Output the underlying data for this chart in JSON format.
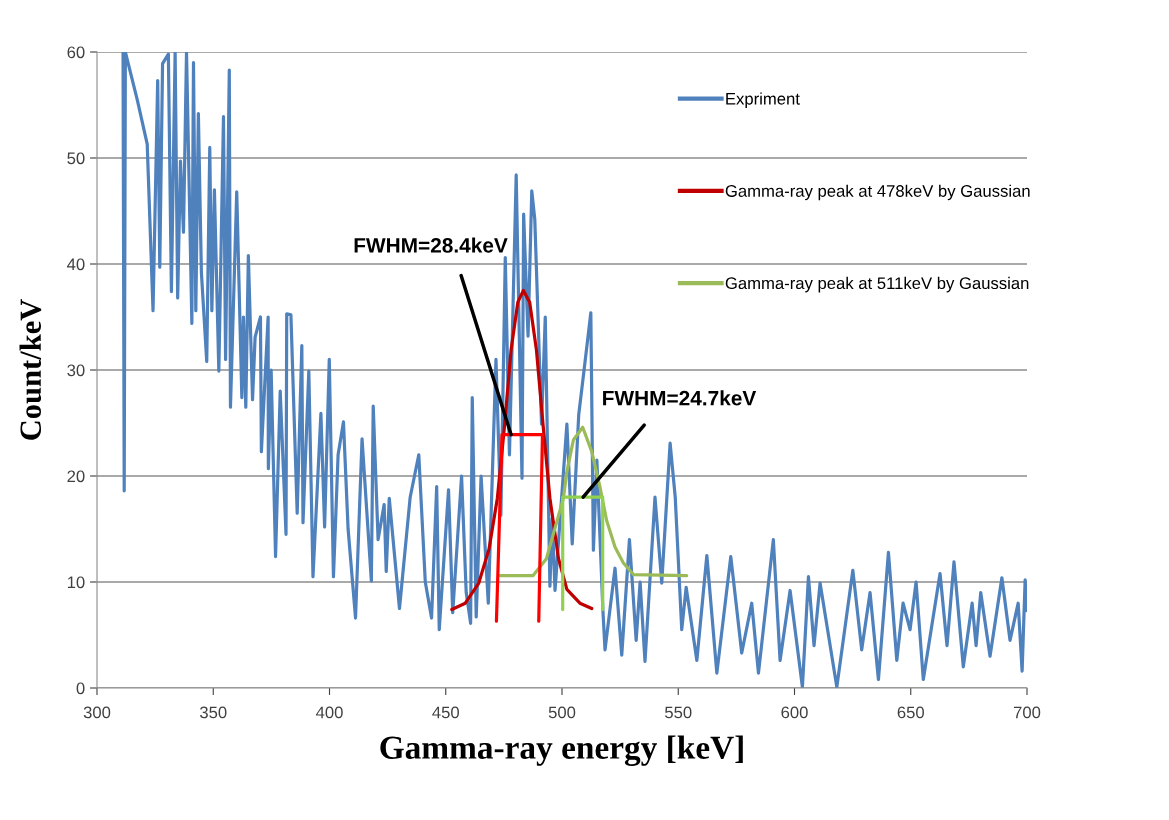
{
  "chart_data": {
    "type": "line",
    "xlabel": "Gamma-ray energy [keV]",
    "ylabel": "Count/keV",
    "xlim": [
      300,
      700
    ],
    "xticks": [
      300,
      350,
      400,
      450,
      500,
      550,
      600,
      650,
      700
    ],
    "ylim": [
      0,
      60
    ],
    "yticks": [
      0,
      10,
      20,
      30,
      40,
      50,
      60
    ],
    "grid": "y",
    "legend": "top right",
    "marker": "none",
    "line_style": "solid",
    "series": [
      {
        "name": "Expriment",
        "color": "#4f81bd",
        "x": [
          311.2,
          311.7,
          312.2,
          317.3,
          321.6,
          324.1,
          326.1,
          327.0,
          328.2,
          330.7,
          332.0,
          333.6,
          334.7,
          335.9,
          337.2,
          338.5,
          340.8,
          341.5,
          342.5,
          343.6,
          344.9,
          347.2,
          348.5,
          349.4,
          350.5,
          352.4,
          354.4,
          355.3,
          356.9,
          357.4,
          360.1,
          362.3,
          363.0,
          364.0,
          365.1,
          366.9,
          368.0,
          370.3,
          370.7,
          373.6,
          373.7,
          374.9,
          376.8,
          378.8,
          381.3,
          381.6,
          383.4,
          386.1,
          388.1,
          388.6,
          391.1,
          392.9,
          396.3,
          397.9,
          399.9,
          401.7,
          403.7,
          406.0,
          408.0,
          411.2,
          414.0,
          418.0,
          418.8,
          420.9,
          423.5,
          424.4,
          425.7,
          430.1,
          434.7,
          438.4,
          441.2,
          443.9,
          446.1,
          447.2,
          451.2,
          453.0,
          456.8,
          458.8,
          460.7,
          461.4,
          463.1,
          465.2,
          468.3,
          471.6,
          473.7,
          475.6,
          477.4,
          480.3,
          482.8,
          483.5,
          485.4,
          487.0,
          488.3,
          491.2,
          492.8,
          494.8,
          495.8,
          497.0,
          502.1,
          504.4,
          507.2,
          508.9,
          512.4,
          513.5,
          515.0,
          517.6,
          518.5,
          522.8,
          525.7,
          529.0,
          531.9,
          533.6,
          535.7,
          540.0,
          542.9,
          546.5,
          548.7,
          551.5,
          553.4,
          558.0,
          562.3,
          566.6,
          572.6,
          577.3,
          581.6,
          584.5,
          590.9,
          593.8,
          598.1,
          603.4,
          606.0,
          608.4,
          611.0,
          618.2,
          625.1,
          628.9,
          632.5,
          636.1,
          640.4,
          644.0,
          646.7,
          649.7,
          652.3,
          655.4,
          662.6,
          665.6,
          668.6,
          672.6,
          676.4,
          678.1,
          680.1,
          684.1,
          689.2,
          692.7,
          696.2,
          697.9,
          699.2,
          700
        ],
        "values": [
          60,
          18.6,
          60,
          55.5,
          51.3,
          35.6,
          57.3,
          39.7,
          58.9,
          59.8,
          37.4,
          60,
          36.8,
          49.7,
          43,
          60,
          34.4,
          59,
          35.6,
          54.2,
          39.2,
          30.8,
          51,
          35.6,
          47,
          29.9,
          53.9,
          31,
          58.3,
          26.5,
          46.8,
          27.4,
          35,
          26.5,
          40.8,
          27.2,
          33.1,
          35,
          22.3,
          35,
          20.7,
          30,
          12.4,
          28,
          14.5,
          35.3,
          35.2,
          16.5,
          32.3,
          15.6,
          29.9,
          10.5,
          25.9,
          15.2,
          31,
          10.5,
          22,
          25.1,
          15,
          6.6,
          23.5,
          10.1,
          26.6,
          14,
          17.3,
          11,
          17.9,
          7.5,
          18,
          22,
          10,
          6.6,
          19,
          5.5,
          18.7,
          7.1,
          20,
          9,
          6.1,
          27.4,
          6.7,
          20,
          8,
          31,
          16.3,
          40.6,
          22,
          48.4,
          19.8,
          44.7,
          33.2,
          46.9,
          44.2,
          24.9,
          35,
          9.6,
          16,
          9.2,
          24.9,
          13.6,
          25.8,
          28.9,
          35.4,
          13,
          21.5,
          7.3,
          3.6,
          11.3,
          3.1,
          14,
          4.5,
          10,
          2.5,
          18,
          9.9,
          23.1,
          18,
          5.5,
          9.5,
          2.6,
          12.5,
          1.4,
          12.4,
          3.3,
          8,
          1.4,
          14,
          2.6,
          9.2,
          0.1,
          10.5,
          4,
          9.9,
          0.1,
          11.1,
          3.6,
          9,
          0.8,
          12.8,
          2.6,
          8,
          5.5,
          10,
          0.8,
          10.8,
          4,
          11.9,
          2,
          8,
          4,
          9,
          3,
          10.4,
          4.5,
          8,
          1.6,
          10.2,
          7.3
        ]
      },
      {
        "name": "Gamma-ray peak at 478keV by Gaussian",
        "color": "#c00000",
        "x": [
          452.6,
          458.4,
          464.2,
          468.6,
          472.2,
          475.1,
          478.1,
          481.0,
          483.4,
          486.1,
          489.0,
          491.9,
          494.8,
          498.5,
          502.1,
          507.7,
          512.8
        ],
        "values": [
          7.4,
          8.0,
          9.9,
          13.1,
          17.9,
          24.3,
          31.9,
          36.4,
          37.5,
          36.4,
          31.9,
          24.7,
          17.9,
          12.2,
          9.3,
          8.0,
          7.5
        ]
      },
      {
        "name": "Gamma-ray peak at 511keV by Gaussian",
        "color": "#9bbb59",
        "x": [
          473.2,
          487.5,
          493.3,
          500.6,
          502.0,
          504.9,
          508.9,
          512.8,
          516.3,
          519.2,
          522.8,
          526.4,
          530.7,
          553.6
        ],
        "values": [
          10.6,
          10.6,
          12.2,
          17.9,
          20.3,
          23.4,
          24.6,
          22.3,
          19,
          15.8,
          13.3,
          11.8,
          10.7,
          10.6
        ]
      },
      {
        "color": "#ff0000",
        "x": [
          471.8,
          474.2,
          491.6,
          490.0
        ],
        "values": [
          6.3,
          23.9,
          23.9,
          6.3
        ]
      },
      {
        "color": "#92d050",
        "x": [
          500.3,
          500.3,
          517.5,
          517.5
        ],
        "values": [
          7.4,
          18.0,
          18.0,
          7.4
        ]
      }
    ],
    "annotations": [
      {
        "text": "FWHM=28.4keV",
        "x": 478.1,
        "y": 23.9
      },
      {
        "text": "FWHM=24.7keV",
        "x": 509.1,
        "y": 18.0
      }
    ]
  }
}
